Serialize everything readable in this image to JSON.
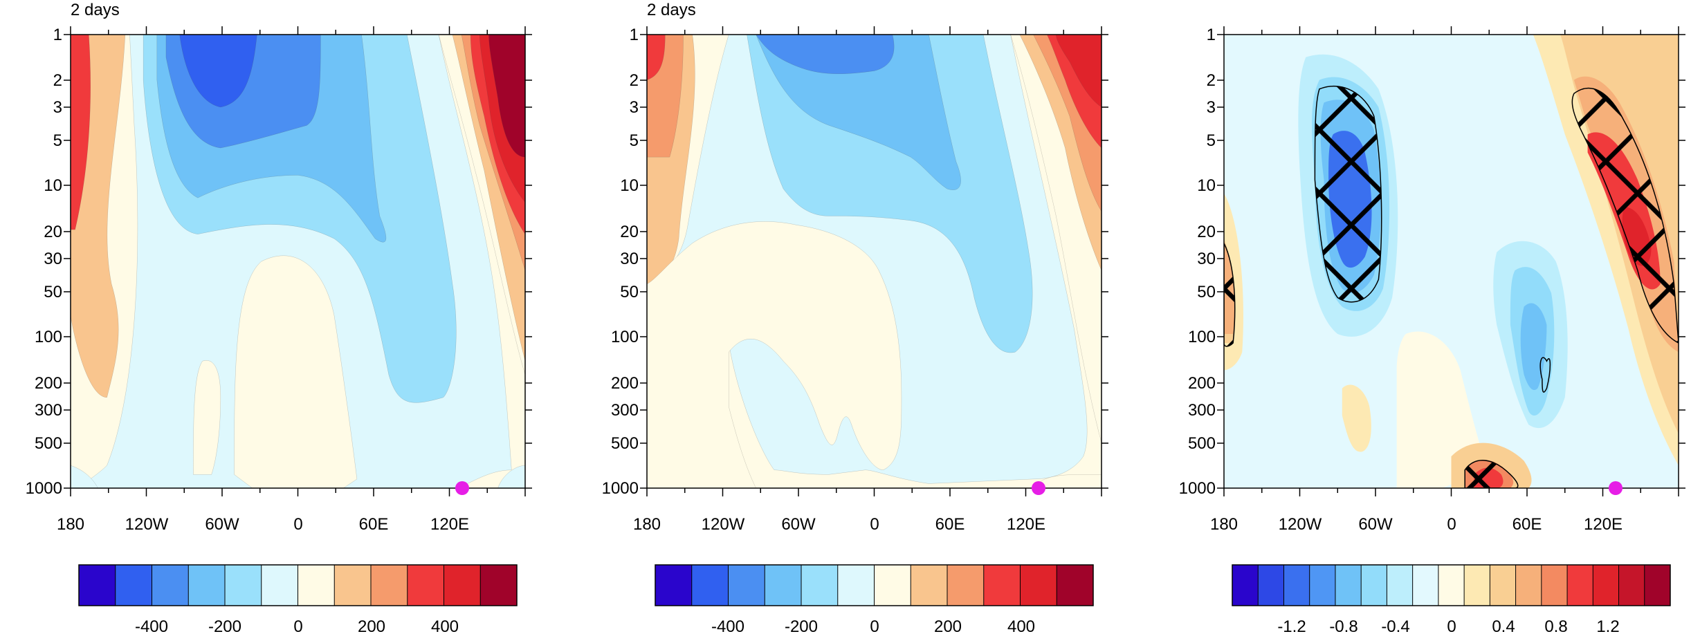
{
  "chart_data": [
    {
      "type": "heatmap",
      "title": "2 days",
      "plot": "contour",
      "x_ticks": [
        "180",
        "120W",
        "60W",
        "0",
        "60E",
        "120E"
      ],
      "y_ticks": [
        "1",
        "2",
        "3",
        "5",
        "10",
        "20",
        "30",
        "50",
        "100",
        "200",
        "300",
        "500",
        "1000"
      ],
      "y_scale": "log",
      "ylim": [
        1000,
        1
      ],
      "marker_lon": 130,
      "colorbar": {
        "labels": [
          "-400",
          "-200",
          "0",
          "200",
          "400"
        ],
        "colors": [
          "#2a05cc",
          "#3060f0",
          "#4b8ff2",
          "#6fc2f7",
          "#9ae0fb",
          "#def8fd",
          "#fffbe6",
          "#f9c58e",
          "#f59b6c",
          "#f03a3c",
          "#e0232b",
          "#a0032a"
        ]
      }
    },
    {
      "type": "heatmap",
      "title": "2 days",
      "plot": "contour",
      "x_ticks": [
        "180",
        "120W",
        "60W",
        "0",
        "60E",
        "120E"
      ],
      "y_ticks": [
        "1",
        "2",
        "3",
        "5",
        "10",
        "20",
        "30",
        "50",
        "100",
        "200",
        "300",
        "500",
        "1000"
      ],
      "y_scale": "log",
      "ylim": [
        1000,
        1
      ],
      "marker_lon": 130,
      "colorbar": {
        "labels": [
          "-400",
          "-200",
          "0",
          "200",
          "400"
        ],
        "colors": [
          "#2a05cc",
          "#3060f0",
          "#4b8ff2",
          "#6fc2f7",
          "#9ae0fb",
          "#def8fd",
          "#fffbe6",
          "#f9c58e",
          "#f59b6c",
          "#f03a3c",
          "#e0232b",
          "#a0032a"
        ]
      }
    },
    {
      "type": "heatmap",
      "title": "",
      "plot": "contour",
      "x_ticks": [
        "180",
        "120W",
        "60W",
        "0",
        "60E",
        "120E"
      ],
      "y_ticks": [
        "1",
        "2",
        "3",
        "5",
        "10",
        "20",
        "30",
        "50",
        "100",
        "200",
        "300",
        "500",
        "1000"
      ],
      "y_scale": "log",
      "ylim": [
        1000,
        1
      ],
      "marker_lon": 130,
      "hatched_regions": true,
      "colorbar": {
        "labels": [
          "-1.2",
          "-0.8",
          "-0.4",
          "0",
          "0.4",
          "0.8",
          "1.2"
        ],
        "colors": [
          "#2a05cc",
          "#2d48e6",
          "#3a70ef",
          "#4f96f4",
          "#6fc2f7",
          "#92dcfa",
          "#bdeefc",
          "#e3f9fe",
          "#fffbe6",
          "#fde9b3",
          "#f9cf93",
          "#f6b07a",
          "#f38a61",
          "#f03a3c",
          "#e0232b",
          "#c5152a",
          "#a0032a"
        ]
      }
    }
  ]
}
